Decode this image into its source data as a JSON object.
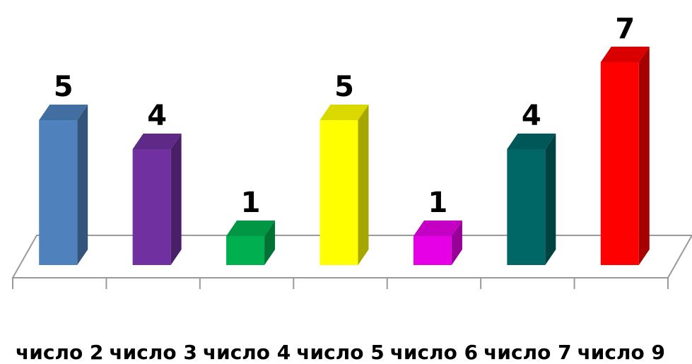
{
  "chart_data": {
    "type": "bar",
    "title": "",
    "xlabel": "",
    "ylabel": "",
    "categories": [
      "число 2",
      "число 3",
      "число 4",
      "число 5",
      "число 6",
      "число 7",
      "число 9"
    ],
    "values": [
      5,
      4,
      1,
      5,
      1,
      4,
      7
    ],
    "value_labels": [
      "5",
      "4",
      "1",
      "5",
      "1",
      "4",
      "7"
    ],
    "colors": [
      "#4f81bd",
      "#7030a0",
      "#00b050",
      "#ffff00",
      "#e600e6",
      "#006666",
      "#ff0000"
    ],
    "ylim": [
      0,
      7
    ],
    "grid": false,
    "legend": "none",
    "style": "3d-columns"
  }
}
